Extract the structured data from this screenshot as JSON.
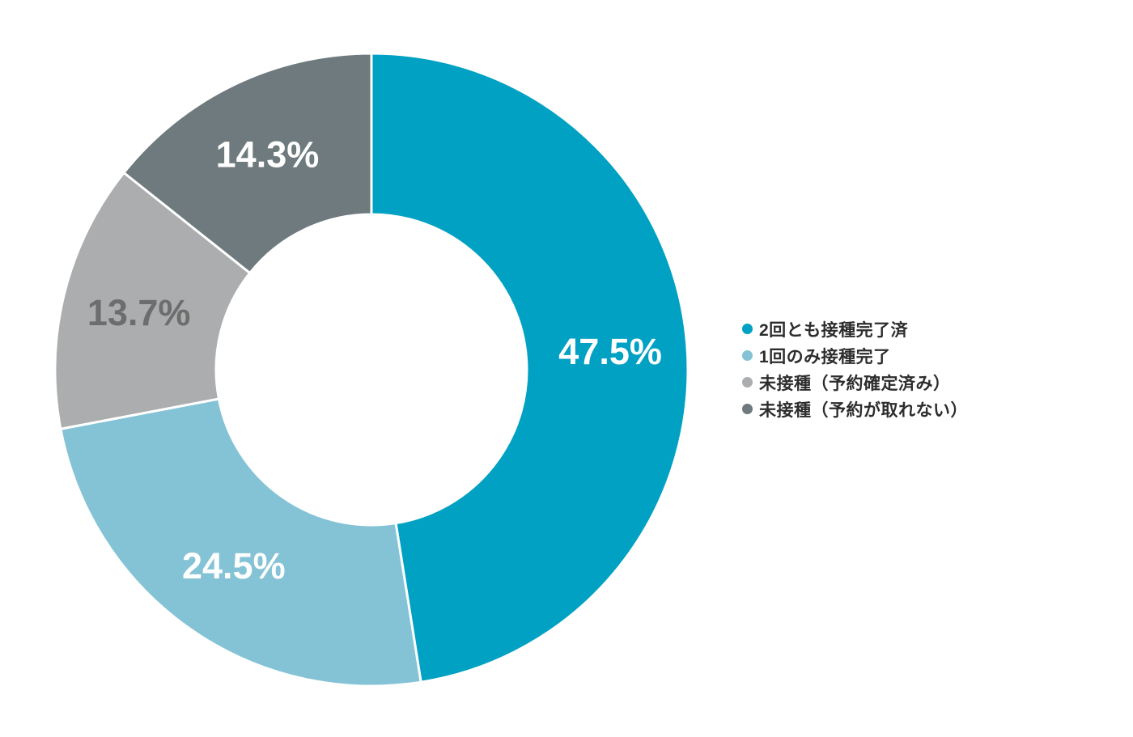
{
  "chart_data": {
    "type": "pie",
    "subtype": "donut",
    "legend_position": "right",
    "direction": "clockwise",
    "start_angle_deg": -90,
    "donut_hole_ratio": 0.49,
    "background_color": "#ffffff",
    "slice_border_color": "#ffffff",
    "categories": [
      "2回とも接種完了済",
      "1回のみ接種完了",
      "未接種（予約確定済み）",
      "未接種（予約が取れない）"
    ],
    "values": [
      47.5,
      24.5,
      13.7,
      14.3
    ],
    "slices": [
      {
        "label": "2回とも接種完了済",
        "value": 47.5,
        "display": "47.5%",
        "color": "#00a1c2",
        "label_color": "#ffffff"
      },
      {
        "label": "1回のみ接種完了",
        "value": 24.5,
        "display": "24.5%",
        "color": "#84c3d6",
        "label_color": "#ffffff"
      },
      {
        "label": "未接種（予約確定済み）",
        "value": 13.7,
        "display": "13.7%",
        "color": "#abadaf",
        "label_color": "#6d6d6d"
      },
      {
        "label": "未接種（予約が取れない）",
        "value": 14.3,
        "display": "14.3%",
        "color": "#6e7a7d",
        "label_color": "#ffffff"
      }
    ]
  }
}
